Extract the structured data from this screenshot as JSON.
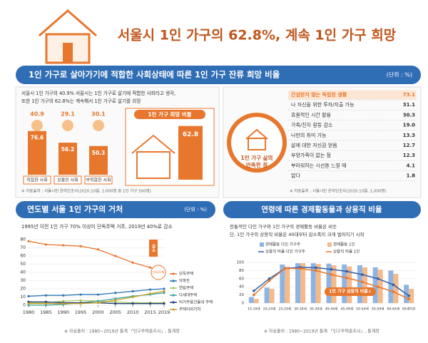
{
  "title": "서울시 1인 가구의 62.8%, 계속 1인 가구 희망",
  "section1": {
    "header": "1인 가구로 살아가기에 적합한 사회상태에 따른 1인 가구 잔류 희망 비율",
    "unit": "(단위 : %)",
    "intro": [
      "서울시 1인 가구의 40.9% 서울시는 1인 가구로 살기에 적합한 사회라고 생각,",
      "또한 1인 가구의 62.8%는 계속해서 1인 가구로 살기를 희망"
    ],
    "source_left": "※ 자료출처 : 서울시민 온라인조사(2020.10월, 1,000명 중 1인 가구 500명)",
    "circle_label": [
      "1인 가구 삶의",
      "만족한 점"
    ],
    "satisfaction": [
      [
        "간섭받지 않는 독립된 생활",
        "73.1"
      ],
      [
        "나 자신을 위한 투자/지출 가능",
        "31.1"
      ],
      [
        "효율적인 시간 활용",
        "30.3"
      ],
      [
        "가족/친지 갈등 감소",
        "19.0"
      ],
      [
        "나만의 취미 가능",
        "13.3"
      ],
      [
        "삶에 대한 자신감 얻음",
        "12.7"
      ],
      [
        "부양가족이 없는 점",
        "12.3"
      ],
      [
        "부러워하는 시선을 느낄 때",
        "4.1"
      ],
      [
        "없다",
        "1.8"
      ]
    ],
    "source_right": "※ 자료출처 : 서울시민 온라인조사(2020.10월, 1,000명)"
  },
  "section2": {
    "left_header": "연도별 서울 1인 가구의 거처",
    "left_unit": "(단위 : %)",
    "left_note": "1995년 이전 1인 가구 70% 이상이 단독주택 거주, 2019년 40%로 감소",
    "right_header": "연령에 따른 경제활동율과 상용직 비율",
    "right_note": [
      "전통적인 다인 가구와 1인 가구의 경제활동 비율은 비슷",
      "단, 1인 가구의 상용직 비율은 40대부터 감소폭이 크게 벌어지기 시작"
    ],
    "source": "※ 자료출처 : 1980~2019년 통계 「인구주택총조사」, 통계청"
  },
  "chart_data": [
    {
      "type": "bar",
      "categories": [
        "적합한 사회",
        "보통인 사회",
        "부적합한 사회"
      ],
      "shares": [
        40.9,
        29.1,
        30.1
      ],
      "values": [
        76.6,
        56.2,
        50.3
      ],
      "color": "#e8772e"
    },
    {
      "type": "bar",
      "title": "1인 가구 희망 비율",
      "categories": [
        null
      ],
      "values": [
        62.8
      ],
      "color": "#e8772e"
    },
    {
      "type": "line",
      "x": [
        1980,
        1985,
        1990,
        1995,
        2000,
        2005,
        2010,
        2015,
        2019
      ],
      "xlim": [
        1980,
        2019
      ],
      "xticks": [
        1980,
        1985,
        1990,
        1995,
        2000,
        2005,
        2010,
        2015,
        2019
      ],
      "ylim": [
        0,
        80
      ],
      "yticks": [
        0,
        10,
        20,
        30,
        40,
        50,
        60,
        70,
        80
      ],
      "grid": true,
      "annotations": [
        "감소",
        "단독주택"
      ],
      "series": [
        {
          "name": "단독주택",
          "color": "#e8772e",
          "values": [
            78,
            74,
            73,
            72,
            68,
            60,
            52,
            46,
            41
          ]
        },
        {
          "name": "아파트",
          "color": "#2e75b6",
          "values": [
            11,
            12,
            12,
            13,
            13,
            15,
            17,
            19,
            20
          ]
        },
        {
          "name": "연립주택",
          "color": "#a9c96b",
          "values": [
            3,
            3,
            5,
            6,
            5,
            4,
            3,
            3,
            3
          ]
        },
        {
          "name": "다세대주택",
          "color": "#3aa6a0",
          "values": [
            0,
            0,
            1,
            3,
            5,
            8,
            11,
            13,
            15
          ]
        },
        {
          "name": "비거주용건물내 주택",
          "color": "#1f3c78",
          "values": [
            4,
            4,
            3,
            3,
            3,
            2,
            2,
            2,
            2
          ]
        },
        {
          "name": "주택이외거처",
          "color": "#c9a227",
          "values": [
            2,
            2,
            2,
            2,
            3,
            6,
            10,
            14,
            17
          ]
        }
      ]
    },
    {
      "type": "bar",
      "categories": [
        "15-19세",
        "20-24세",
        "25-29세",
        "30-34세",
        "35-39세",
        "40-44세",
        "45-49세",
        "50-54세",
        "55-59세",
        "60-64세",
        "65세이상"
      ],
      "ylim": [
        0,
        100
      ],
      "yticks": [
        0,
        20,
        40,
        60,
        80,
        100
      ],
      "grid": true,
      "annotation": "1인 가구 상용직 비율↓",
      "series": [
        {
          "name": "경제활동 다인 가구주",
          "type": "bar",
          "color": "#8fb4e3",
          "values": [
            15,
            38,
            95,
            98,
            98,
            97,
            95,
            93,
            88,
            80,
            45
          ]
        },
        {
          "name": "경제활동 1인",
          "type": "bar",
          "color": "#f5b98a",
          "values": [
            10,
            35,
            90,
            98,
            96,
            93,
            90,
            88,
            82,
            72,
            35
          ]
        },
        {
          "name": "상용직 비율 다인 가구주",
          "type": "line",
          "color": "#2e5fa8",
          "values": [
            30,
            60,
            85,
            88,
            87,
            83,
            78,
            70,
            60,
            45,
            18
          ]
        },
        {
          "name": "상용직 비율 1인",
          "type": "line",
          "color": "#e8772e",
          "values": [
            20,
            55,
            85,
            85,
            80,
            70,
            62,
            52,
            40,
            28,
            10
          ]
        }
      ]
    }
  ]
}
